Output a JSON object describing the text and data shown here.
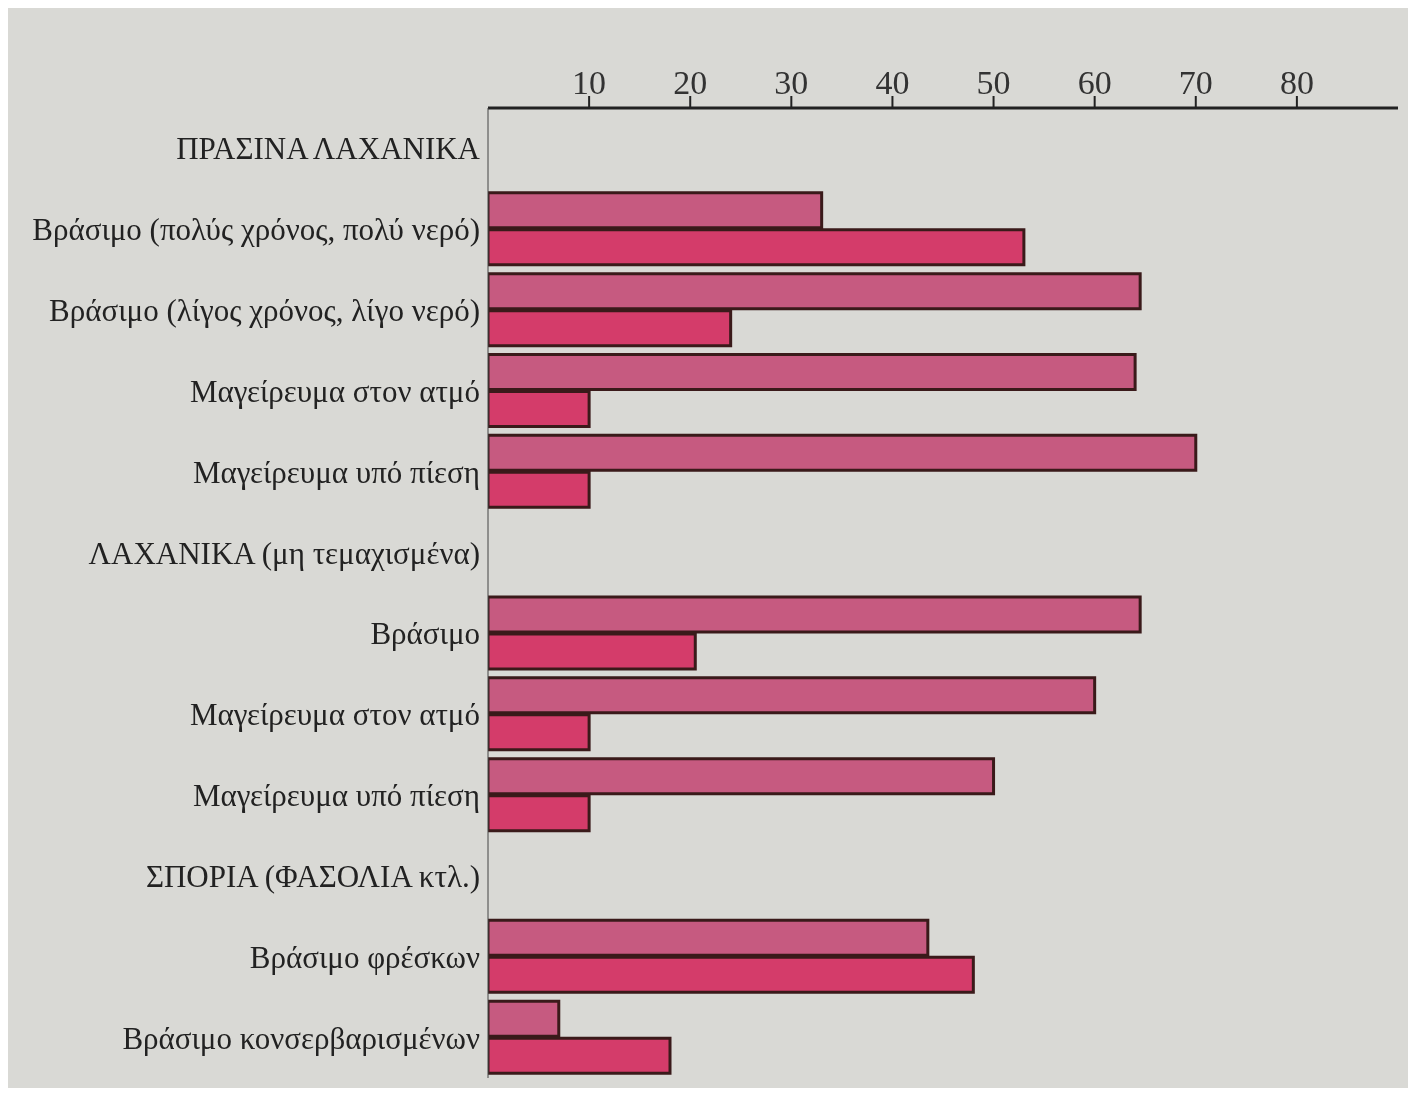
{
  "chart_data": {
    "type": "bar",
    "orientation": "horizontal",
    "categories": [
      "ΠΡΑΣΙΝΑ ΛΑΧΑΝΙΚΑ",
      "Βράσιμο (πολύς χρόνος, πολύ νερό)",
      "Βράσιμο (λίγος χρόνος, λίγο νερό)",
      "Μαγείρευμα στον ατμό",
      "Μαγείρευμα υπό πίεση",
      "ΛΑΧΑΝΙΚΑ  (μη τεμαχισμένα)",
      "Βράσιμο",
      "Μαγείρευμα στον ατμό",
      "Μαγείρευμα υπό πίεση",
      "ΣΠΟΡΙΑ (ΦΑΣΟΛΙΑ κτλ.)",
      "Βράσιμο φρέσκων",
      "Βράσιμο κονσερβαρισμένων"
    ],
    "series": [
      {
        "color": "#c65a80",
        "values": [
          null,
          33,
          64.5,
          64,
          70,
          null,
          64.5,
          60,
          50,
          null,
          43.5,
          7
        ]
      },
      {
        "color": "#d43c6a",
        "values": [
          null,
          53,
          24,
          10,
          10,
          null,
          20.5,
          10,
          10,
          null,
          48,
          18
        ]
      }
    ],
    "xlim": [
      0,
      90
    ],
    "xticks": [
      10,
      20,
      30,
      40,
      50,
      60,
      70,
      80
    ],
    "grid": false
  }
}
